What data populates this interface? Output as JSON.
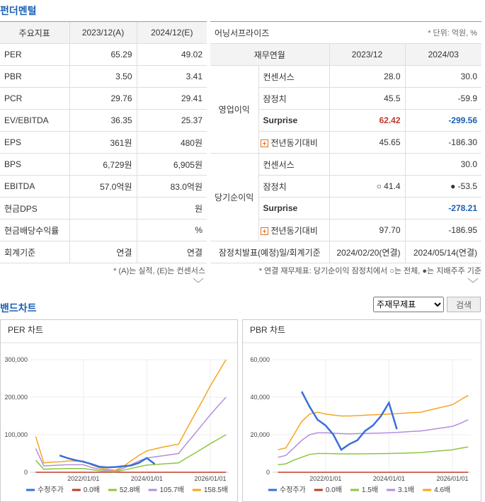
{
  "fundamentals": {
    "title": "펀더멘털",
    "header": [
      "주요지표",
      "2023/12(A)",
      "2024/12(E)"
    ],
    "rows": [
      [
        "PER",
        "65.29",
        "49.02"
      ],
      [
        "PBR",
        "3.50",
        "3.41"
      ],
      [
        "PCR",
        "29.76",
        "29.41"
      ],
      [
        "EV/EBITDA",
        "36.35",
        "25.37"
      ],
      [
        "EPS",
        "361원",
        "480원"
      ],
      [
        "BPS",
        "6,729원",
        "6,905원"
      ],
      [
        "EBITDA",
        "57.0억원",
        "83.0억원"
      ],
      [
        "현금DPS",
        null,
        "원"
      ],
      [
        "현금배당수익률",
        null,
        "%"
      ],
      [
        "회계기준",
        "연결",
        "연결"
      ]
    ],
    "note": "* (A)는 실적, (E)는 컨센서스"
  },
  "earnings_surprise": {
    "title": "어닝서프라이즈",
    "unit": "* 단위: 억원, %",
    "header": [
      "재무연월",
      "2023/12",
      "2024/03"
    ],
    "groups": [
      {
        "name": "영업이익",
        "rows": [
          [
            "컨센서스",
            "28.0",
            "30.0"
          ],
          [
            "잠정치",
            "45.5",
            "-59.9"
          ],
          [
            "Surprise",
            "62.42",
            "-299.56"
          ],
          [
            "전년동기대비",
            "45.65",
            "-186.30"
          ]
        ]
      },
      {
        "name": "당기순이익",
        "rows": [
          [
            "컨센서스",
            null,
            "30.0"
          ],
          [
            "잠정치",
            "○ 41.4",
            "● -53.5"
          ],
          [
            "Surprise",
            null,
            "-278.21"
          ],
          [
            "전년동기대비",
            "97.70",
            "-186.95"
          ]
        ]
      }
    ],
    "footer": [
      "잠정치발표(예정)일/회계기준",
      "2024/02/20(연결)",
      "2024/05/14(연결)"
    ],
    "note": "* 연결 재무제표: 당기순이익 잠정치에서 ○는 전체, ●는 지배주주 기준"
  },
  "band_chart": {
    "title": "밴드차트",
    "select": "주재무제표",
    "button": "검색"
  },
  "chart_data": [
    {
      "type": "line",
      "title": "PER 차트",
      "x": [
        "2020/07/01",
        "2020/10/01",
        "2021/01/01",
        "2021/04/01",
        "2021/07/01",
        "2021/10/01",
        "2022/01/01",
        "2022/04/01",
        "2022/07/01",
        "2022/10/01",
        "2023/01/01",
        "2023/04/01",
        "2023/07/01",
        "2023/10/01",
        "2024/01/01",
        "2024/04/01",
        "2024/07/01",
        "2024/10/01",
        "2025/01/01",
        "2025/04/01",
        "2025/07/01",
        "2025/10/01",
        "2026/01/01",
        "2026/04/01",
        "2026/07/01"
      ],
      "xlim": [
        "2020/05/01",
        "2026/08/01"
      ],
      "xticks": [
        "2022/01/01",
        "2024/01/01",
        "2026/01/01"
      ],
      "ylim": [
        0,
        300000
      ],
      "yticks": [
        0,
        {
          "value": 100000,
          "label": "100,000"
        },
        {
          "value": 200000,
          "label": "200,000"
        },
        {
          "value": 300000,
          "label": "300,000"
        }
      ],
      "grid": true,
      "series": [
        {
          "name": "수정주가",
          "color": "#3a6fd8",
          "values": [
            null,
            null,
            null,
            45000,
            38000,
            32000,
            28000,
            22000,
            15000,
            13000,
            14000,
            16000,
            18000,
            25000,
            38000,
            22000,
            null,
            null,
            null,
            null,
            null,
            null,
            null,
            null,
            null
          ]
        },
        {
          "name": "0.0배",
          "color": "#c0392b",
          "values": [
            0,
            0,
            0,
            0,
            0,
            0,
            0,
            0,
            0,
            0,
            0,
            0,
            0,
            0,
            0,
            0,
            0,
            0,
            0,
            0,
            0,
            0,
            0,
            0,
            0
          ]
        },
        {
          "name": "52.8배",
          "color": "#8dc63f",
          "values": [
            32000,
            8000,
            9000,
            9500,
            10000,
            10000,
            10000,
            7000,
            4000,
            2500,
            1500,
            5000,
            10000,
            15000,
            19000,
            20500,
            22000,
            23500,
            25000,
            38000,
            50000,
            63000,
            76000,
            88000,
            100000
          ]
        },
        {
          "name": "105.7배",
          "color": "#b48ee0",
          "values": [
            63000,
            17000,
            18000,
            19000,
            20000,
            20000,
            20000,
            13000,
            8000,
            5000,
            3000,
            10000,
            20000,
            30000,
            38000,
            41000,
            44000,
            47000,
            50000,
            76000,
            101000,
            127000,
            153000,
            177000,
            200000
          ]
        },
        {
          "name": "158.5배",
          "color": "#f5a623",
          "values": [
            95000,
            25000,
            27000,
            28000,
            30000,
            30000,
            30000,
            20000,
            12000,
            8000,
            5000,
            15000,
            30000,
            45000,
            57000,
            62000,
            67000,
            71000,
            75000,
            114000,
            152000,
            190000,
            230000,
            265000,
            300000
          ]
        }
      ]
    },
    {
      "type": "line",
      "title": "PBR 차트",
      "x": [
        "2020/07/01",
        "2020/10/01",
        "2021/01/01",
        "2021/04/01",
        "2021/07/01",
        "2021/10/01",
        "2022/01/01",
        "2022/04/01",
        "2022/07/01",
        "2022/10/01",
        "2023/01/01",
        "2023/04/01",
        "2023/07/01",
        "2023/10/01",
        "2024/01/01",
        "2024/04/01",
        "2024/07/01",
        "2024/10/01",
        "2025/01/01",
        "2025/04/01",
        "2025/07/01",
        "2025/10/01",
        "2026/01/01",
        "2026/04/01",
        "2026/07/01"
      ],
      "xlim": [
        "2020/05/01",
        "2026/08/01"
      ],
      "xticks": [
        "2022/01/01",
        "2024/01/01",
        "2026/01/01"
      ],
      "ylim": [
        0,
        60000
      ],
      "yticks": [
        0,
        {
          "value": 20000,
          "label": "20,000"
        },
        {
          "value": 40000,
          "label": "40,000"
        },
        {
          "value": 60000,
          "label": "60,000"
        }
      ],
      "grid": true,
      "series": [
        {
          "name": "수정주가",
          "color": "#3a6fd8",
          "values": [
            null,
            null,
            null,
            43000,
            35000,
            28000,
            25000,
            20000,
            12000,
            15000,
            17000,
            22000,
            25000,
            30000,
            37000,
            23000,
            null,
            null,
            null,
            null,
            null,
            null,
            null,
            null,
            null
          ]
        },
        {
          "name": "0.0배",
          "color": "#c0392b",
          "values": [
            0,
            0,
            0,
            0,
            0,
            0,
            0,
            0,
            0,
            0,
            0,
            0,
            0,
            0,
            0,
            0,
            0,
            0,
            0,
            0,
            0,
            0,
            0,
            0,
            0
          ]
        },
        {
          "name": "1.5배",
          "color": "#8dc63f",
          "values": [
            4000,
            4500,
            6500,
            8000,
            9500,
            10000,
            10000,
            9900,
            9800,
            9800,
            9800,
            9850,
            9900,
            9950,
            10000,
            10100,
            10200,
            10350,
            10500,
            10900,
            11300,
            11600,
            12000,
            12800,
            13500
          ]
        },
        {
          "name": "3.1배",
          "color": "#b48ee0",
          "values": [
            8000,
            9000,
            13000,
            17000,
            20000,
            21000,
            21000,
            20800,
            20600,
            20500,
            20600,
            20700,
            20800,
            20900,
            21000,
            21200,
            21500,
            21800,
            22000,
            22600,
            23200,
            23800,
            24500,
            26000,
            28000
          ]
        },
        {
          "name": "4.6배",
          "color": "#f5a623",
          "values": [
            12000,
            13000,
            20000,
            27000,
            31000,
            32000,
            31000,
            30500,
            30000,
            30000,
            30200,
            30400,
            30600,
            30800,
            31000,
            31200,
            31500,
            31800,
            32000,
            33000,
            34000,
            35000,
            36000,
            38500,
            41000
          ]
        }
      ]
    }
  ]
}
